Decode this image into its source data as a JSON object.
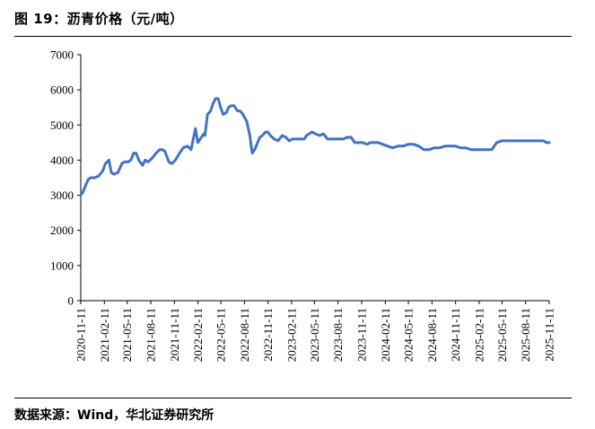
{
  "header": {
    "title": "图 19：沥青价格（元/吨）"
  },
  "footer": {
    "source": "数据来源：Wind，华北证券研究所"
  },
  "chart_data": {
    "type": "line",
    "title": "",
    "xlabel": "",
    "ylabel": "",
    "ylim": [
      0,
      7000
    ],
    "yticks": [
      0,
      1000,
      2000,
      3000,
      4000,
      5000,
      6000,
      7000
    ],
    "xticks": [
      "2020-11-11",
      "2021-02-11",
      "2021-05-11",
      "2021-08-11",
      "2021-11-11",
      "2022-02-11",
      "2022-05-11",
      "2022-08-11",
      "2022-11-11",
      "2023-02-11",
      "2023-05-11",
      "2023-08-11",
      "2023-11-11",
      "2024-02-11",
      "2024-05-11",
      "2024-08-11",
      "2024-11-11",
      "2025-02-11",
      "2025-05-11",
      "2025-08-11",
      "2025-11-11"
    ],
    "xlim": [
      "2020-11-11",
      "2025-11-11"
    ],
    "grid": false,
    "color": "#4472C4",
    "series": [
      {
        "x": [
          "2020-11-11",
          "2020-11-20",
          "2020-12-01",
          "2020-12-10",
          "2020-12-20",
          "2021-01-05",
          "2021-01-20",
          "2021-02-05",
          "2021-02-15",
          "2021-03-01",
          "2021-03-10",
          "2021-03-20",
          "2021-04-05",
          "2021-04-20",
          "2021-05-01",
          "2021-05-15",
          "2021-05-25",
          "2021-06-05",
          "2021-06-15",
          "2021-06-25",
          "2021-07-10",
          "2021-07-20",
          "2021-08-01",
          "2021-08-15",
          "2021-09-01",
          "2021-09-15",
          "2021-09-25",
          "2021-10-05",
          "2021-10-20",
          "2021-11-01",
          "2021-11-15",
          "2021-12-01",
          "2021-12-15",
          "2022-01-01",
          "2022-01-15",
          "2022-02-01",
          "2022-02-10",
          "2022-02-20",
          "2022-03-01",
          "2022-03-05",
          "2022-03-10",
          "2022-03-20",
          "2022-04-01",
          "2022-04-10",
          "2022-04-20",
          "2022-05-01",
          "2022-05-10",
          "2022-05-20",
          "2022-06-01",
          "2022-06-10",
          "2022-06-20",
          "2022-07-01",
          "2022-07-15",
          "2022-07-25",
          "2022-08-05",
          "2022-08-20",
          "2022-09-01",
          "2022-09-10",
          "2022-09-20",
          "2022-10-01",
          "2022-10-10",
          "2022-10-20",
          "2022-11-01",
          "2022-11-10",
          "2022-11-20",
          "2022-12-05",
          "2022-12-20",
          "2023-01-05",
          "2023-01-20",
          "2023-02-01",
          "2023-02-15",
          "2023-03-01",
          "2023-03-15",
          "2023-04-01",
          "2023-04-10",
          "2023-04-20",
          "2023-05-01",
          "2023-05-15",
          "2023-06-01",
          "2023-06-15",
          "2023-07-01",
          "2023-07-15",
          "2023-08-01",
          "2023-08-15",
          "2023-09-01",
          "2023-09-15",
          "2023-10-01",
          "2023-10-15",
          "2023-11-01",
          "2023-11-15",
          "2023-12-01",
          "2023-12-15",
          "2024-01-01",
          "2024-01-15",
          "2024-02-01",
          "2024-02-20",
          "2024-03-10",
          "2024-04-01",
          "2024-04-20",
          "2024-05-10",
          "2024-06-01",
          "2024-06-20",
          "2024-07-10",
          "2024-08-01",
          "2024-08-20",
          "2024-09-10",
          "2024-10-01",
          "2024-10-20",
          "2024-11-10",
          "2024-12-01",
          "2024-12-20",
          "2025-01-10",
          "2025-02-01",
          "2025-02-20",
          "2025-03-10",
          "2025-04-01",
          "2025-04-20",
          "2025-05-10",
          "2025-06-01",
          "2025-06-20",
          "2025-07-10",
          "2025-08-01",
          "2025-08-20",
          "2025-09-10",
          "2025-10-01",
          "2025-10-20",
          "2025-11-01",
          "2025-11-11"
        ],
        "y": [
          3000,
          3100,
          3300,
          3450,
          3500,
          3500,
          3550,
          3700,
          3900,
          4000,
          3650,
          3600,
          3650,
          3900,
          3950,
          3950,
          4000,
          4200,
          4200,
          4000,
          3850,
          4000,
          3950,
          4050,
          4200,
          4300,
          4300,
          4250,
          3950,
          3900,
          4000,
          4200,
          4350,
          4400,
          4300,
          4900,
          4500,
          4600,
          4700,
          4750,
          4700,
          5300,
          5400,
          5600,
          5750,
          5750,
          5500,
          5300,
          5350,
          5500,
          5550,
          5550,
          5400,
          5400,
          5300,
          5100,
          4700,
          4200,
          4300,
          4500,
          4650,
          4700,
          4800,
          4800,
          4700,
          4600,
          4550,
          4700,
          4650,
          4550,
          4600,
          4600,
          4600,
          4600,
          4700,
          4750,
          4800,
          4750,
          4700,
          4750,
          4600,
          4600,
          4600,
          4600,
          4600,
          4650,
          4650,
          4500,
          4500,
          4500,
          4450,
          4500,
          4500,
          4500,
          4450,
          4400,
          4350,
          4400,
          4400,
          4450,
          4450,
          4400,
          4300,
          4300,
          4350,
          4350,
          4400,
          4400,
          4400,
          4350,
          4350,
          4300,
          4300,
          4300,
          4300,
          4300,
          4500,
          4550,
          4550,
          4550,
          4550,
          4550,
          4550,
          4550,
          4550,
          4550,
          4500,
          4500
        ]
      }
    ]
  }
}
